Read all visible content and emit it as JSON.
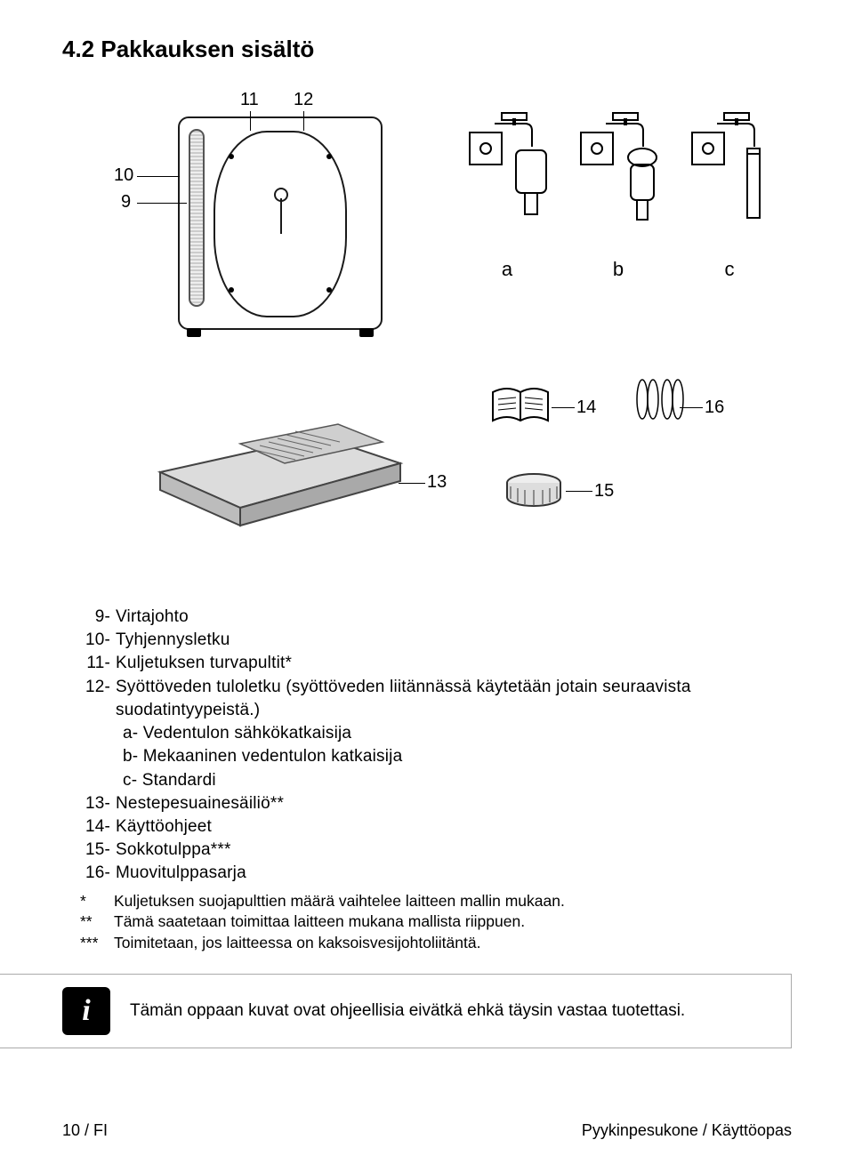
{
  "title": "4.2 Pakkauksen sisältö",
  "callouts": {
    "n9": "9",
    "n10": "10",
    "n11": "11",
    "n12": "12",
    "n13": "13",
    "n14": "14",
    "n15": "15",
    "n16": "16",
    "a": "a",
    "b": "b",
    "c": "c"
  },
  "legend": [
    {
      "num": "9-",
      "text": "Virtajohto"
    },
    {
      "num": "10-",
      "text": "Tyhjennysletku"
    },
    {
      "num": "11-",
      "text": "Kuljetuksen turvapultit*"
    },
    {
      "num": "12-",
      "text": "Syöttöveden tuloletku (syöttöveden liitännässä käytetään jotain seuraavista suodatintyypeistä.)"
    },
    {
      "sub": true,
      "num": "a-",
      "text": "Vedentulon sähkökatkaisija"
    },
    {
      "sub": true,
      "num": "b-",
      "text": "Mekaaninen vedentulon katkaisija"
    },
    {
      "sub": true,
      "num": "c-",
      "text": "Standardi"
    },
    {
      "num": "13-",
      "text": "Nestepesuainesäiliö**"
    },
    {
      "num": "14-",
      "text": "Käyttöohjeet"
    },
    {
      "num": "15-",
      "text": "Sokkotulppa***"
    },
    {
      "num": "16-",
      "text": "Muovitulppasarja"
    }
  ],
  "footnotes": [
    {
      "mark": "*",
      "text": "Kuljetuksen suojapulttien määrä vaihtelee laitteen mallin mukaan."
    },
    {
      "mark": "**",
      "text": "Tämä saatetaan toimittaa laitteen mukana mallista riippuen."
    },
    {
      "mark": "***",
      "text": "Toimitetaan, jos laitteessa on kaksoisvesijohtoliitäntä."
    }
  ],
  "info_note": "Tämän oppaan kuvat ovat ohjeellisia eivätkä ehkä täysin vastaa tuotettasi.",
  "footer_left": "10 / FI",
  "footer_right": "Pyykinpesukone / Käyttöopas",
  "colors": {
    "text": "#000000",
    "bg": "#ffffff",
    "rule": "#aaaaaa"
  }
}
